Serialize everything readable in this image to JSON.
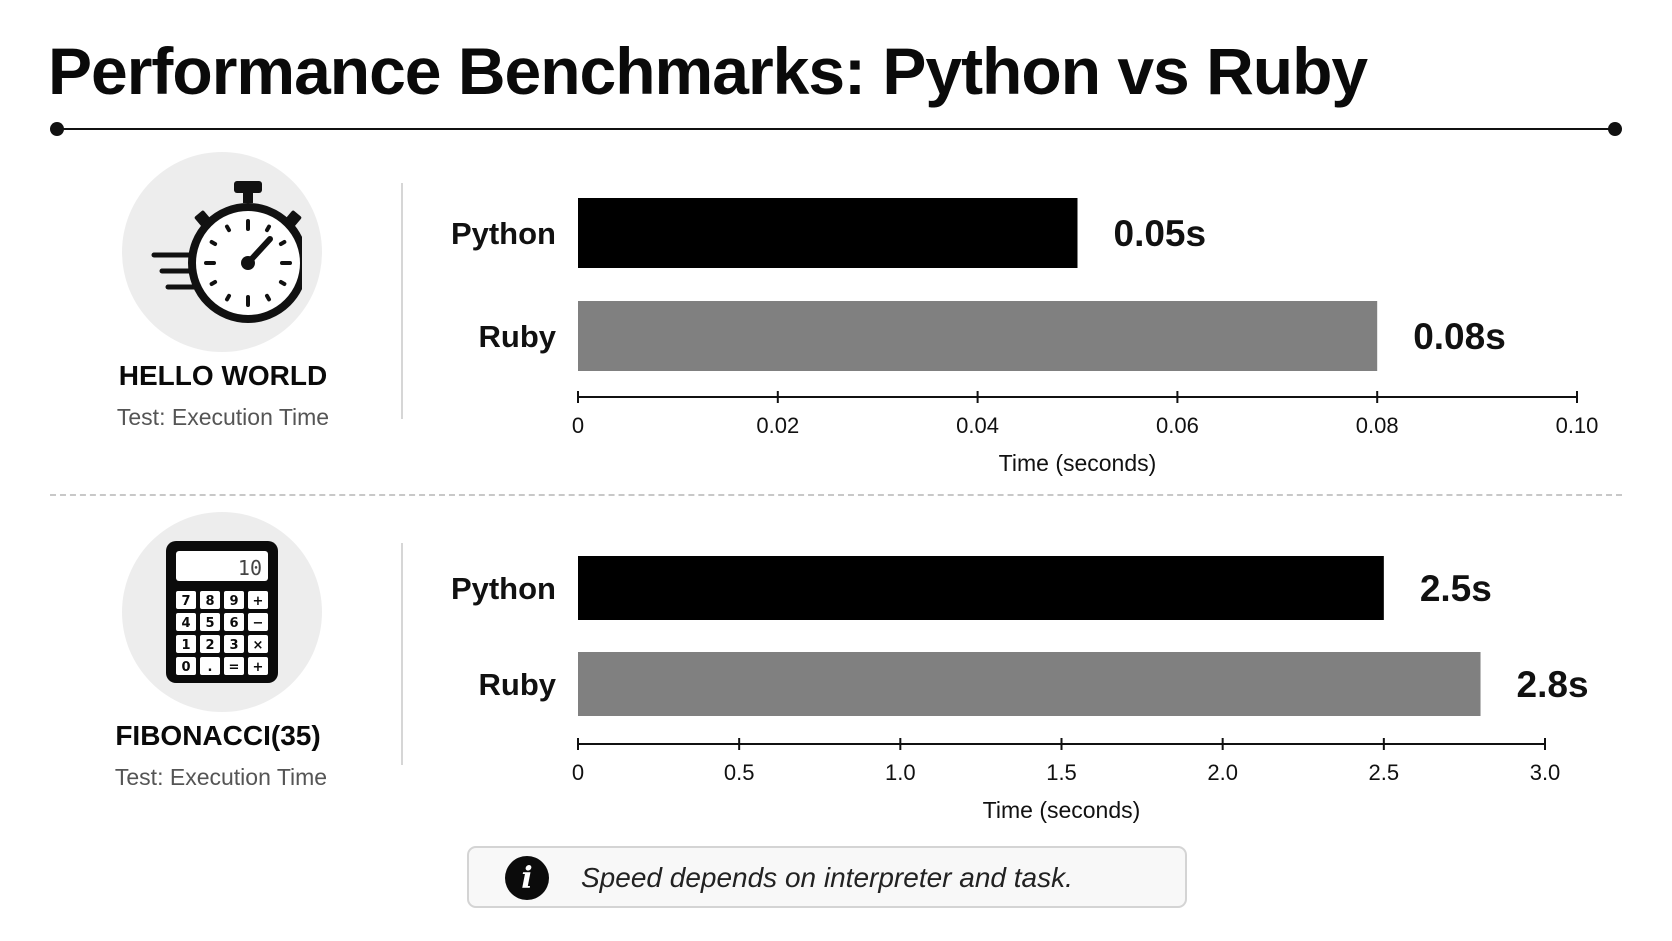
{
  "title": "Performance Benchmarks: Python vs Ruby",
  "sections": [
    {
      "name": "HELLO WORLD",
      "subtitle": "Test: Execution Time",
      "icon": "stopwatch-icon"
    },
    {
      "name": "FIBONACCI(35)",
      "subtitle": "Test: Execution Time",
      "icon": "calculator-icon"
    }
  ],
  "calculator_display": "10",
  "calculator_keys": [
    "7",
    "8",
    "9",
    "+",
    "4",
    "5",
    "6",
    "−",
    "1",
    "2",
    "3",
    "×",
    "0",
    ".",
    "=",
    "+"
  ],
  "chart_data": [
    {
      "type": "bar",
      "orientation": "horizontal",
      "categories": [
        "Python",
        "Ruby"
      ],
      "values": [
        0.05,
        0.08
      ],
      "value_labels": [
        "0.05s",
        "0.08s"
      ],
      "colors": [
        "#000000",
        "#808080"
      ],
      "xlabel": "Time (seconds)",
      "xlim": [
        0,
        0.1
      ],
      "ticks": [
        0,
        0.02,
        0.04,
        0.06,
        0.08,
        0.1
      ],
      "tick_labels": [
        "0",
        "0.02",
        "0.04",
        "0.06",
        "0.08",
        "0.10"
      ],
      "grid": false
    },
    {
      "type": "bar",
      "orientation": "horizontal",
      "categories": [
        "Python",
        "Ruby"
      ],
      "values": [
        2.5,
        2.8
      ],
      "value_labels": [
        "2.5s",
        "2.8s"
      ],
      "colors": [
        "#000000",
        "#808080"
      ],
      "xlabel": "Time (seconds)",
      "xlim": [
        0,
        3.0
      ],
      "ticks": [
        0,
        0.5,
        1.0,
        1.5,
        2.0,
        2.5,
        3.0
      ],
      "tick_labels": [
        "0",
        "0.5",
        "1.0",
        "1.5",
        "2.0",
        "2.5",
        "3.0"
      ],
      "grid": false
    }
  ],
  "note": {
    "text": "Speed depends on interpreter and task.",
    "icon": "info-icon",
    "icon_glyph": "i"
  }
}
